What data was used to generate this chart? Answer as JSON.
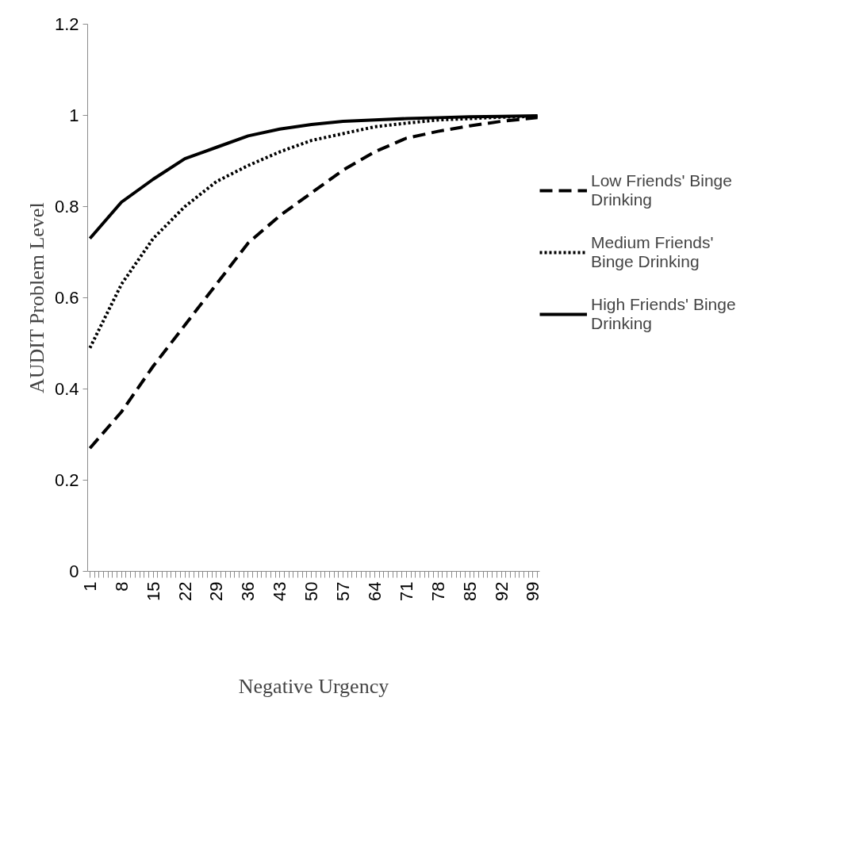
{
  "chart_data": {
    "type": "line",
    "xlabel": "Negative Urgency",
    "ylabel": "AUDIT Problem Level",
    "xlim": [
      0.5,
      100.5
    ],
    "ylim": [
      0,
      1.2
    ],
    "yticks": [
      0,
      0.2,
      0.4,
      0.6,
      0.8,
      1,
      1.2
    ],
    "xticks": [
      1,
      {
        "value": 2,
        "label": null
      },
      {
        "value": 3,
        "label": null
      },
      {
        "value": 4,
        "label": null
      },
      {
        "value": 5,
        "label": null
      },
      {
        "value": 6,
        "label": null
      },
      {
        "value": 7,
        "label": null
      },
      8,
      {
        "value": 9,
        "label": null
      },
      {
        "value": 10,
        "label": null
      },
      {
        "value": 11,
        "label": null
      },
      {
        "value": 12,
        "label": null
      },
      {
        "value": 13,
        "label": null
      },
      {
        "value": 14,
        "label": null
      },
      15,
      {
        "value": 16,
        "label": null
      },
      {
        "value": 17,
        "label": null
      },
      {
        "value": 18,
        "label": null
      },
      {
        "value": 19,
        "label": null
      },
      {
        "value": 20,
        "label": null
      },
      {
        "value": 21,
        "label": null
      },
      22,
      {
        "value": 23,
        "label": null
      },
      {
        "value": 24,
        "label": null
      },
      {
        "value": 25,
        "label": null
      },
      {
        "value": 26,
        "label": null
      },
      {
        "value": 27,
        "label": null
      },
      {
        "value": 28,
        "label": null
      },
      29,
      {
        "value": 30,
        "label": null
      },
      {
        "value": 31,
        "label": null
      },
      {
        "value": 32,
        "label": null
      },
      {
        "value": 33,
        "label": null
      },
      {
        "value": 34,
        "label": null
      },
      {
        "value": 35,
        "label": null
      },
      36,
      {
        "value": 37,
        "label": null
      },
      {
        "value": 38,
        "label": null
      },
      {
        "value": 39,
        "label": null
      },
      {
        "value": 40,
        "label": null
      },
      {
        "value": 41,
        "label": null
      },
      {
        "value": 42,
        "label": null
      },
      43,
      {
        "value": 44,
        "label": null
      },
      {
        "value": 45,
        "label": null
      },
      {
        "value": 46,
        "label": null
      },
      {
        "value": 47,
        "label": null
      },
      {
        "value": 48,
        "label": null
      },
      {
        "value": 49,
        "label": null
      },
      50,
      {
        "value": 51,
        "label": null
      },
      {
        "value": 52,
        "label": null
      },
      {
        "value": 53,
        "label": null
      },
      {
        "value": 54,
        "label": null
      },
      {
        "value": 55,
        "label": null
      },
      {
        "value": 56,
        "label": null
      },
      57,
      {
        "value": 58,
        "label": null
      },
      {
        "value": 59,
        "label": null
      },
      {
        "value": 60,
        "label": null
      },
      {
        "value": 61,
        "label": null
      },
      {
        "value": 62,
        "label": null
      },
      {
        "value": 63,
        "label": null
      },
      64,
      {
        "value": 65,
        "label": null
      },
      {
        "value": 66,
        "label": null
      },
      {
        "value": 67,
        "label": null
      },
      {
        "value": 68,
        "label": null
      },
      {
        "value": 69,
        "label": null
      },
      {
        "value": 70,
        "label": null
      },
      71,
      {
        "value": 72,
        "label": null
      },
      {
        "value": 73,
        "label": null
      },
      {
        "value": 74,
        "label": null
      },
      {
        "value": 75,
        "label": null
      },
      {
        "value": 76,
        "label": null
      },
      {
        "value": 77,
        "label": null
      },
      78,
      {
        "value": 79,
        "label": null
      },
      {
        "value": 80,
        "label": null
      },
      {
        "value": 81,
        "label": null
      },
      {
        "value": 82,
        "label": null
      },
      {
        "value": 83,
        "label": null
      },
      {
        "value": 84,
        "label": null
      },
      85,
      {
        "value": 86,
        "label": null
      },
      {
        "value": 87,
        "label": null
      },
      {
        "value": 88,
        "label": null
      },
      {
        "value": 89,
        "label": null
      },
      {
        "value": 90,
        "label": null
      },
      {
        "value": 91,
        "label": null
      },
      92,
      {
        "value": 93,
        "label": null
      },
      {
        "value": 94,
        "label": null
      },
      {
        "value": 95,
        "label": null
      },
      {
        "value": 96,
        "label": null
      },
      {
        "value": 97,
        "label": null
      },
      {
        "value": 98,
        "label": null
      },
      99,
      {
        "value": 100,
        "label": null
      }
    ],
    "x": [
      1,
      8,
      15,
      22,
      29,
      36,
      43,
      50,
      57,
      64,
      71,
      78,
      85,
      92,
      100
    ],
    "grid": false,
    "legend": "right",
    "marker": "none",
    "series": [
      {
        "name": "Low Friends' Binge Drinking",
        "color": "#000000",
        "line_style": "dashed",
        "values": [
          0.27,
          0.35,
          0.45,
          0.54,
          0.63,
          0.72,
          0.78,
          0.83,
          0.88,
          0.92,
          0.95,
          0.965,
          0.977,
          0.987,
          0.995
        ]
      },
      {
        "name": "Medium Friends' Binge Drinking",
        "color": "#000000",
        "line_style": "dotted",
        "values": [
          0.49,
          0.63,
          0.73,
          0.8,
          0.855,
          0.89,
          0.92,
          0.945,
          0.96,
          0.975,
          0.983,
          0.99,
          0.993,
          0.996,
          0.998
        ]
      },
      {
        "name": "High Friends' Binge Drinking",
        "color": "#000000",
        "line_style": "solid",
        "values": [
          0.73,
          0.81,
          0.86,
          0.905,
          0.93,
          0.955,
          0.97,
          0.98,
          0.987,
          0.99,
          0.993,
          0.995,
          0.997,
          0.998,
          0.999
        ]
      }
    ]
  }
}
